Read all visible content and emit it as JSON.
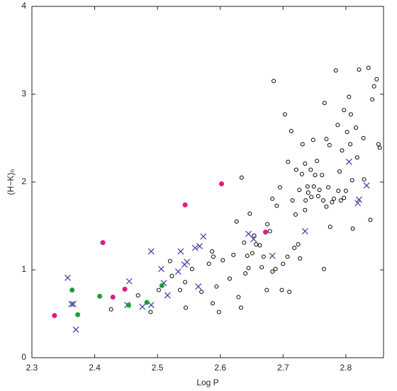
{
  "chart_data": {
    "type": "scatter",
    "xlabel": "Log P",
    "ylabel": "(H−K)₀",
    "xlim": [
      2.3,
      2.86
    ],
    "ylim": [
      0,
      4
    ],
    "xticks": [
      2.3,
      2.4,
      2.5,
      2.6,
      2.7,
      2.8
    ],
    "yticks": [
      0,
      1,
      2,
      3,
      4
    ],
    "series": [
      {
        "color": "#000000",
        "marker": "open-circle",
        "x": [
          2.426,
          2.469,
          2.489,
          2.502,
          2.52,
          2.523,
          2.544,
          2.545,
          2.536,
          2.555,
          2.57,
          2.582,
          2.587,
          2.589,
          2.588,
          2.594,
          2.598,
          2.604,
          2.615,
          2.621,
          2.626,
          2.629,
          2.633,
          2.634,
          2.638,
          2.64,
          2.643,
          2.645,
          2.647,
          2.651,
          2.654,
          2.657,
          2.663,
          2.666,
          2.669,
          2.674,
          2.675,
          2.679,
          2.683,
          2.683,
          2.688,
          2.685,
          2.69,
          2.695,
          2.698,
          2.7,
          2.703,
          2.707,
          2.708,
          2.71,
          2.713,
          2.715,
          2.718,
          2.72,
          2.721,
          2.724,
          2.726,
          2.727,
          2.73,
          2.731,
          2.735,
          2.735,
          2.736,
          2.739,
          2.74,
          2.744,
          2.745,
          2.748,
          2.749,
          2.751,
          2.754,
          2.756,
          2.758,
          2.762,
          2.764,
          2.766,
          2.769,
          2.765,
          2.772,
          2.774,
          2.769,
          2.778,
          2.775,
          2.781,
          2.784,
          2.787,
          2.788,
          2.79,
          2.792,
          2.794,
          2.797,
          2.797,
          2.8,
          2.802,
          2.805,
          2.807,
          2.808,
          2.81,
          2.816,
          2.818,
          2.821,
          2.811,
          2.828,
          2.829,
          2.836,
          2.839,
          2.842,
          2.845,
          2.849,
          2.852,
          2.854
        ],
        "values": [
          0.55,
          0.71,
          0.52,
          0.77,
          1.1,
          0.93,
          0.86,
          0.57,
          0.77,
          1.01,
          0.75,
          1.07,
          1.21,
          1.15,
          0.62,
          0.81,
          0.52,
          1.11,
          0.9,
          1.17,
          1.55,
          0.69,
          0.57,
          2.05,
          1.31,
          0.96,
          1.16,
          1.02,
          1.64,
          1.19,
          1.39,
          1.29,
          1.28,
          1.03,
          1.15,
          0.77,
          1.52,
          1.44,
          1.81,
          0.98,
          1.01,
          3.15,
          1.73,
          1.94,
          0.77,
          1.07,
          2.77,
          1.15,
          2.23,
          0.75,
          2.58,
          1.79,
          1.25,
          1.63,
          2.14,
          1.29,
          1.91,
          1.13,
          2.09,
          2.43,
          1.68,
          2.21,
          1.79,
          1.95,
          1.88,
          2.14,
          1.83,
          2.48,
          1.95,
          2.08,
          2.24,
          1.84,
          1.91,
          2.08,
          1.79,
          2.9,
          1.72,
          1.01,
          1.94,
          2.42,
          2.49,
          1.77,
          1.49,
          1.81,
          3.27,
          2.65,
          1.9,
          2.12,
          1.79,
          2.36,
          1.82,
          2.82,
          1.9,
          2.57,
          2.97,
          2.43,
          2.77,
          2.02,
          2.62,
          2.28,
          3.28,
          1.47,
          2.5,
          2.03,
          3.3,
          1.57,
          2.94,
          3.09,
          3.17,
          2.43,
          2.39
        ]
      },
      {
        "color": "#3a3aa8",
        "marker": "cross",
        "x": [
          2.357,
          2.363,
          2.366,
          2.37,
          2.455,
          2.452,
          2.49,
          2.476,
          2.49,
          2.506,
          2.51,
          2.516,
          2.533,
          2.537,
          2.543,
          2.547,
          2.56,
          2.567,
          2.573,
          2.565,
          2.645,
          2.653,
          2.683,
          2.735,
          2.805,
          2.819,
          2.821,
          2.833
        ],
        "values": [
          0.91,
          0.61,
          0.61,
          0.32,
          0.87,
          0.6,
          1.21,
          0.58,
          0.6,
          1.01,
          0.85,
          0.71,
          0.98,
          1.21,
          1.06,
          1.09,
          1.25,
          1.27,
          1.38,
          0.81,
          1.41,
          1.35,
          1.16,
          1.44,
          2.23,
          1.76,
          1.8,
          1.96
        ]
      },
      {
        "color": "#e0197d",
        "marker": "filled-circle",
        "x": [
          2.336,
          2.413,
          2.429,
          2.448,
          2.544,
          2.602,
          2.672
        ],
        "values": [
          0.48,
          1.31,
          0.69,
          0.78,
          1.74,
          1.98,
          1.43
        ]
      },
      {
        "color": "#1a9e3c",
        "marker": "filled-circle",
        "x": [
          2.364,
          2.373,
          2.408,
          2.454,
          2.483,
          2.507
        ],
        "values": [
          0.77,
          0.49,
          0.7,
          0.6,
          0.63,
          0.82
        ]
      }
    ]
  }
}
